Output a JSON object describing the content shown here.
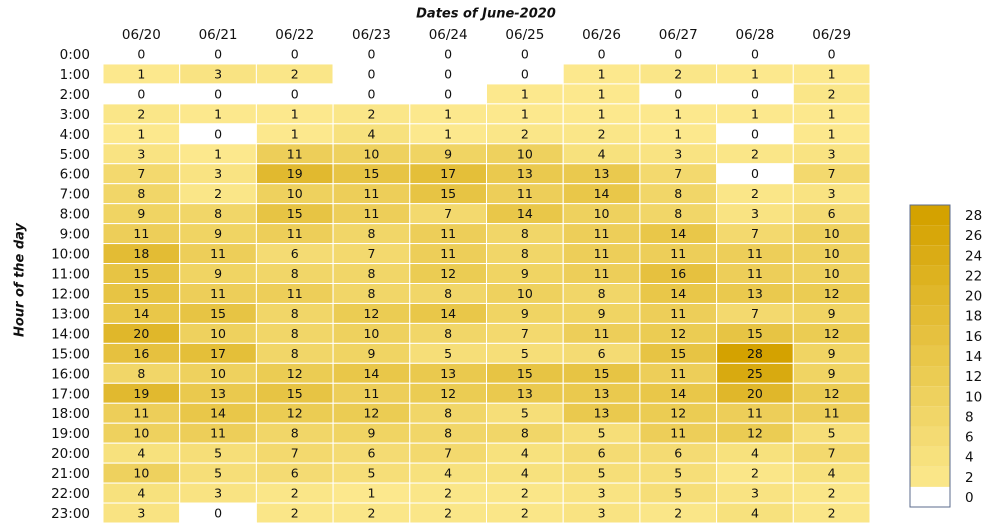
{
  "chart_data": {
    "type": "heatmap",
    "title": "Dates of June-2020",
    "y_label": "Hour of the day",
    "x": [
      "06/20",
      "06/21",
      "06/22",
      "06/23",
      "06/24",
      "06/25",
      "06/26",
      "06/27",
      "06/28",
      "06/29"
    ],
    "y": [
      "0:00",
      "1:00",
      "2:00",
      "3:00",
      "4:00",
      "5:00",
      "6:00",
      "7:00",
      "8:00",
      "9:00",
      "10:00",
      "11:00",
      "12:00",
      "13:00",
      "14:00",
      "15:00",
      "16:00",
      "17:00",
      "18:00",
      "19:00",
      "20:00",
      "21:00",
      "22:00",
      "23:00"
    ],
    "z": [
      [
        0,
        0,
        0,
        0,
        0,
        0,
        0,
        0,
        0,
        0
      ],
      [
        1,
        3,
        2,
        0,
        0,
        0,
        1,
        2,
        1,
        1
      ],
      [
        0,
        0,
        0,
        0,
        0,
        1,
        1,
        0,
        0,
        2
      ],
      [
        2,
        1,
        1,
        2,
        1,
        1,
        1,
        1,
        1,
        1
      ],
      [
        1,
        0,
        1,
        4,
        1,
        2,
        2,
        1,
        0,
        1
      ],
      [
        3,
        1,
        11,
        10,
        9,
        10,
        4,
        3,
        2,
        3
      ],
      [
        7,
        3,
        19,
        15,
        17,
        13,
        13,
        7,
        0,
        7
      ],
      [
        8,
        2,
        10,
        11,
        15,
        11,
        14,
        8,
        2,
        3
      ],
      [
        9,
        8,
        15,
        11,
        7,
        14,
        10,
        8,
        3,
        6
      ],
      [
        11,
        9,
        11,
        8,
        11,
        8,
        11,
        14,
        7,
        10
      ],
      [
        18,
        11,
        6,
        7,
        11,
        8,
        11,
        11,
        11,
        10
      ],
      [
        15,
        9,
        8,
        8,
        12,
        9,
        11,
        16,
        11,
        10
      ],
      [
        15,
        11,
        11,
        8,
        8,
        10,
        8,
        14,
        13,
        12
      ],
      [
        14,
        15,
        8,
        12,
        14,
        9,
        9,
        11,
        7,
        9
      ],
      [
        20,
        10,
        8,
        10,
        8,
        7,
        11,
        12,
        15,
        12
      ],
      [
        16,
        17,
        8,
        9,
        5,
        5,
        6,
        15,
        28,
        9
      ],
      [
        8,
        10,
        12,
        14,
        13,
        15,
        15,
        11,
        25,
        9
      ],
      [
        19,
        13,
        15,
        11,
        12,
        13,
        13,
        14,
        20,
        12
      ],
      [
        11,
        14,
        12,
        12,
        8,
        5,
        13,
        12,
        11,
        11
      ],
      [
        10,
        11,
        8,
        9,
        8,
        8,
        5,
        11,
        12,
        5
      ],
      [
        4,
        5,
        7,
        6,
        7,
        4,
        6,
        6,
        4,
        7
      ],
      [
        10,
        5,
        6,
        5,
        4,
        4,
        5,
        5,
        2,
        4
      ],
      [
        4,
        3,
        2,
        1,
        2,
        2,
        3,
        5,
        3,
        2
      ],
      [
        3,
        0,
        2,
        2,
        2,
        2,
        3,
        2,
        4,
        2
      ]
    ],
    "clim": [
      0,
      28
    ],
    "cticks": [
      0,
      2,
      4,
      6,
      8,
      10,
      12,
      14,
      16,
      18,
      20,
      22,
      24,
      26,
      28
    ],
    "zero_color": "#ffffff",
    "color_low": "#fdeb92",
    "color_high": "#d4a200"
  }
}
